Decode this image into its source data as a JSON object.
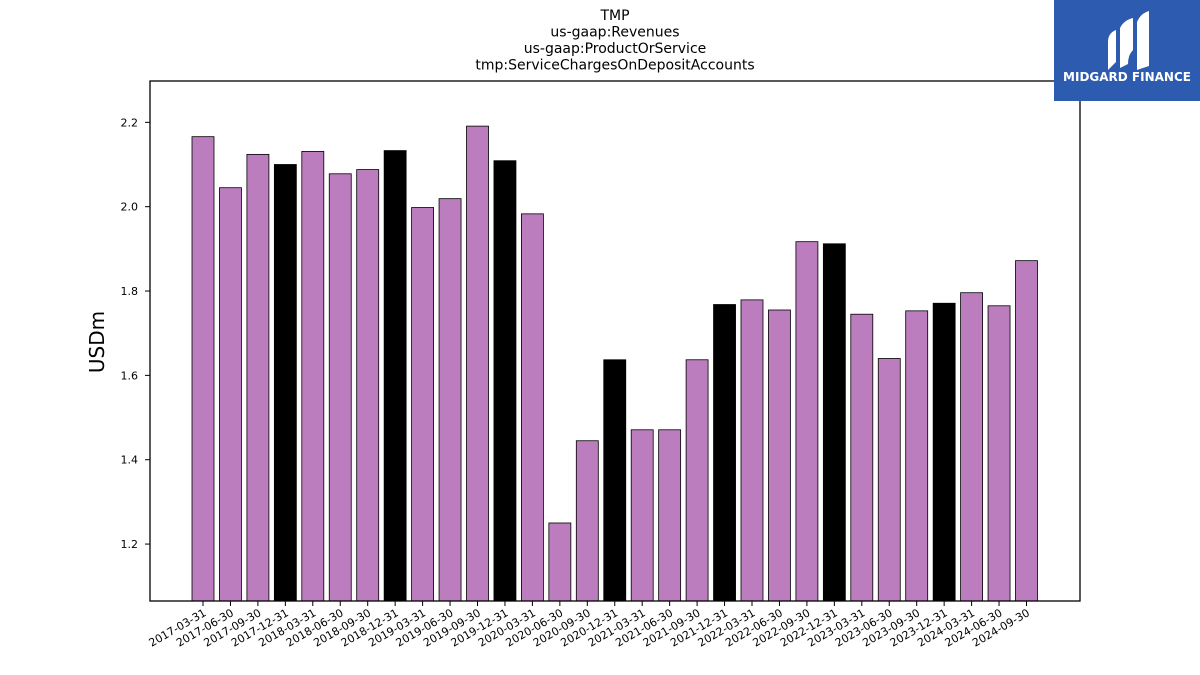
{
  "colors": {
    "bar_default": "#bb7dbd",
    "bar_q4": "#000000",
    "bar_edge": "#000000",
    "logo_bg": "#2c5bb0",
    "logo_fg": "#ffffff"
  },
  "logo": {
    "text": "MIDGARD FINANCE",
    "icon": "midgard-logo-icon"
  },
  "chart_data": {
    "type": "bar",
    "title_lines": [
      "TMP",
      "us-gaap:Revenues",
      "us-gaap:ProductOrService",
      "tmp:ServiceChargesOnDepositAccounts"
    ],
    "xlabel": "",
    "ylabel": "USDm",
    "ylim": [
      1.065,
      2.298
    ],
    "yticks": [
      "1.2",
      "1.4",
      "1.6",
      "1.8",
      "2.0",
      "2.2"
    ],
    "grid": false,
    "categories": [
      "2017-03-31",
      "2017-06-30",
      "2017-09-30",
      "2017-12-31",
      "2018-03-31",
      "2018-06-30",
      "2018-09-30",
      "2018-12-31",
      "2019-03-31",
      "2019-06-30",
      "2019-09-30",
      "2019-12-31",
      "2020-03-31",
      "2020-06-30",
      "2020-09-30",
      "2020-12-31",
      "2021-03-31",
      "2021-06-30",
      "2021-09-30",
      "2021-12-31",
      "2022-03-31",
      "2022-06-30",
      "2022-09-30",
      "2022-12-31",
      "2023-03-31",
      "2023-06-30",
      "2023-09-30",
      "2023-12-31",
      "2024-03-31",
      "2024-06-30",
      "2024-09-30"
    ],
    "values": [
      2.166,
      2.045,
      2.124,
      2.1,
      2.131,
      2.078,
      2.088,
      2.133,
      1.998,
      2.019,
      2.191,
      2.109,
      1.983,
      1.25,
      1.445,
      1.637,
      1.471,
      1.471,
      1.637,
      1.768,
      1.779,
      1.755,
      1.917,
      1.912,
      1.745,
      1.64,
      1.753,
      1.771,
      1.796,
      1.765,
      1.872
    ],
    "highlight": [
      "default",
      "default",
      "default",
      "q4",
      "default",
      "default",
      "default",
      "q4",
      "default",
      "default",
      "default",
      "q4",
      "default",
      "default",
      "default",
      "q4",
      "default",
      "default",
      "default",
      "q4",
      "default",
      "default",
      "default",
      "q4",
      "default",
      "default",
      "default",
      "q4",
      "default",
      "default",
      "default"
    ]
  }
}
